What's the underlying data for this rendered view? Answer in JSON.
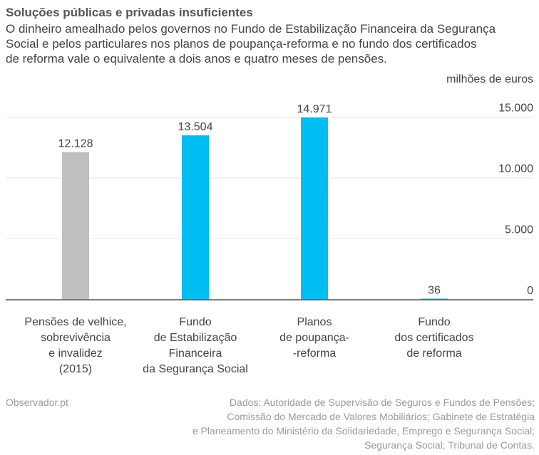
{
  "header": {
    "title": "Soluções públicas e privadas insuficientes",
    "subtitle_lines": [
      "O dinheiro amealhado pelos governos no Fundo de Estabilização Financeira da Segurança",
      "Social e pelos particulares nos planos de poupança-reforma e no fundo dos certificados",
      "de reforma vale o equivalente a dois anos e quatro meses de pensões."
    ]
  },
  "chart_data": {
    "type": "bar",
    "title": "Soluções públicas e privadas insuficientes",
    "ylabel": "milhões de euros",
    "ylim": [
      0,
      15000
    ],
    "yticks": [
      0,
      5000,
      10000,
      15000
    ],
    "ytick_labels": [
      "0",
      "5.000",
      "10.000",
      "15.000"
    ],
    "grid": true,
    "categories": [
      [
        "Pensões de velhice,",
        "sobrevivência",
        "e invalidez",
        "(2015)"
      ],
      [
        "Fundo",
        "de Estabilização",
        "Financeira",
        "da Segurança Social"
      ],
      [
        "Planos",
        "de poupança-",
        "-reforma"
      ],
      [
        "Fundo",
        "dos certificados",
        "de reforma"
      ]
    ],
    "values": [
      12128,
      13504,
      14971,
      36
    ],
    "value_labels": [
      "12.128",
      "13.504",
      "14.971",
      "36"
    ],
    "colors": [
      "#bfbfbf",
      "#00bdf2",
      "#00bdf2",
      "#00bdf2"
    ]
  },
  "footer": {
    "brand": "Observador.pt",
    "source_lines": [
      "Dados: Autoridade de Supervisão de Seguros e Fundos de Pensões;",
      "Comissão do Mercado de Valores Mobiliários; Gabinete de Estratégia",
      "e Planeamento do Ministério da Solidariedade, Emprego e Segurança Social;",
      "Segurança Social; Tribunal de Contas."
    ]
  }
}
